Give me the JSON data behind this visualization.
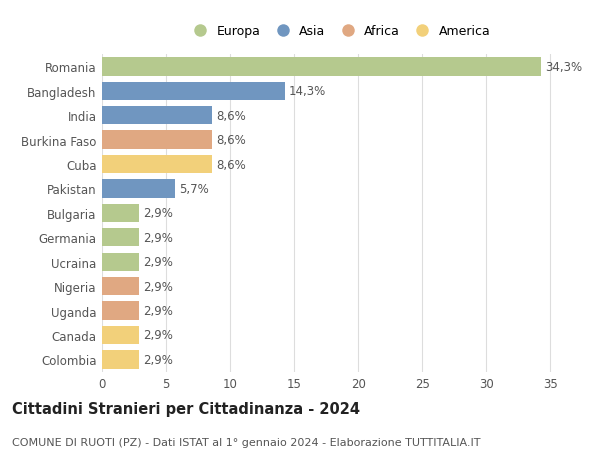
{
  "countries": [
    "Romania",
    "Bangladesh",
    "India",
    "Burkina Faso",
    "Cuba",
    "Pakistan",
    "Bulgaria",
    "Germania",
    "Ucraina",
    "Nigeria",
    "Uganda",
    "Canada",
    "Colombia"
  ],
  "values": [
    34.3,
    14.3,
    8.6,
    8.6,
    8.6,
    5.7,
    2.9,
    2.9,
    2.9,
    2.9,
    2.9,
    2.9,
    2.9
  ],
  "continents": [
    "Europa",
    "Asia",
    "Asia",
    "Africa",
    "America",
    "Asia",
    "Europa",
    "Europa",
    "Europa",
    "Africa",
    "Africa",
    "America",
    "America"
  ],
  "continent_colors": {
    "Europa": "#b5c98e",
    "Asia": "#7096c0",
    "Africa": "#e0a882",
    "America": "#f2d07a"
  },
  "xlim": [
    0,
    37
  ],
  "xticks": [
    0,
    5,
    10,
    15,
    20,
    25,
    30,
    35
  ],
  "title1": "Cittadini Stranieri per Cittadinanza - 2024",
  "title2": "COMUNE DI RUOTI (PZ) - Dati ISTAT al 1° gennaio 2024 - Elaborazione TUTTITALIA.IT",
  "legend_order": [
    "Europa",
    "Asia",
    "Africa",
    "America"
  ],
  "background_color": "#ffffff",
  "bar_height": 0.75,
  "label_fontsize": 8.5,
  "tick_fontsize": 8.5,
  "title1_fontsize": 10.5,
  "title2_fontsize": 8,
  "grid_color": "#dddddd"
}
